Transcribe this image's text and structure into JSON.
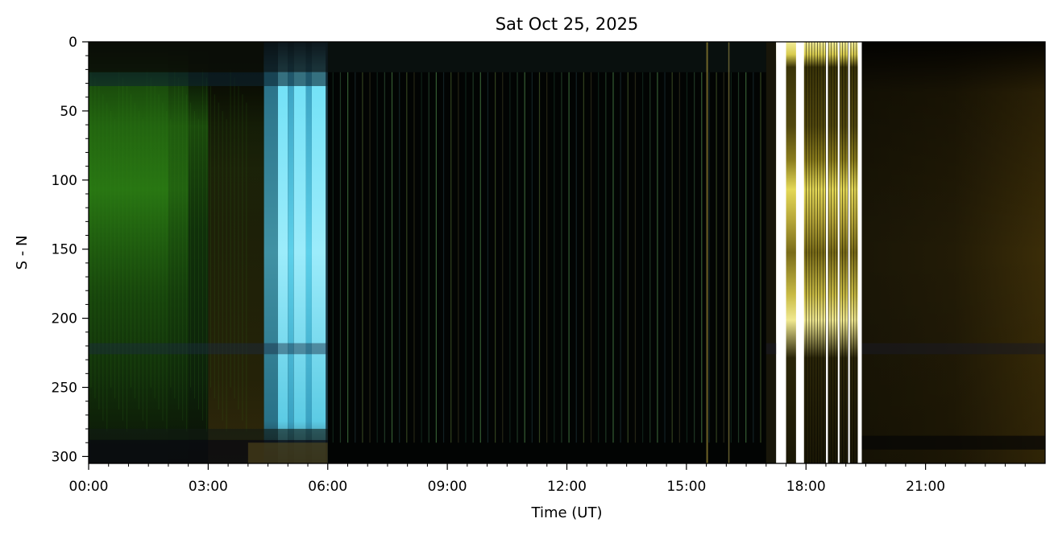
{
  "chart_data": {
    "type": "heatmap",
    "title": "Sat Oct 25, 2025",
    "xlabel": "Time (UT)",
    "ylabel": "S - N",
    "x_unit": "hours UT",
    "xlim": [
      0,
      24
    ],
    "ylim": [
      305,
      0
    ],
    "y_inverted": true,
    "grid": false,
    "legend": "none",
    "x_ticks": [
      {
        "value": 0,
        "label": "00:00"
      },
      {
        "value": 3,
        "label": "03:00"
      },
      {
        "value": 6,
        "label": "06:00"
      },
      {
        "value": 9,
        "label": "09:00"
      },
      {
        "value": 12,
        "label": "12:00"
      },
      {
        "value": 15,
        "label": "15:00"
      },
      {
        "value": 18,
        "label": "18:00"
      },
      {
        "value": 21,
        "label": "21:00"
      }
    ],
    "x_minor_tick_step": 0.5,
    "y_ticks": [
      {
        "value": 0,
        "label": "0"
      },
      {
        "value": 50,
        "label": "50"
      },
      {
        "value": 100,
        "label": "100"
      },
      {
        "value": 150,
        "label": "150"
      },
      {
        "value": 200,
        "label": "200"
      },
      {
        "value": 250,
        "label": "250"
      },
      {
        "value": 300,
        "label": "300"
      }
    ],
    "y_minor_tick_step": 10,
    "segments": [
      {
        "start": 0.0,
        "end": 4.4,
        "content": "dim green aurora structure, brighter green near 00:00-02:00"
      },
      {
        "start": 4.4,
        "end": 6.0,
        "content": "bright cyan / light blue bands"
      },
      {
        "start": 6.0,
        "end": 17.0,
        "content": "dark with many thin vertical streaks"
      },
      {
        "start": 17.0,
        "end": 19.4,
        "content": "yellow bright sky with white vertical gaps"
      },
      {
        "start": 19.4,
        "end": 24.0,
        "content": "dark brown / olive"
      }
    ],
    "white_gaps": [
      [
        17.25,
        17.5
      ],
      [
        17.75,
        17.95
      ],
      [
        18.5,
        18.55
      ],
      [
        18.8,
        18.85
      ],
      [
        19.05,
        19.1
      ],
      [
        19.3,
        19.4
      ]
    ],
    "colors": {
      "background": "#000000",
      "aurora_green": "#2a7a12",
      "cyan": "#5fd6ee",
      "light_blue": "#3fa3c4",
      "twilight_yellow": "#e8dc5a",
      "dark_brown": "#2b2107",
      "gap_white": "#ffffff"
    }
  }
}
